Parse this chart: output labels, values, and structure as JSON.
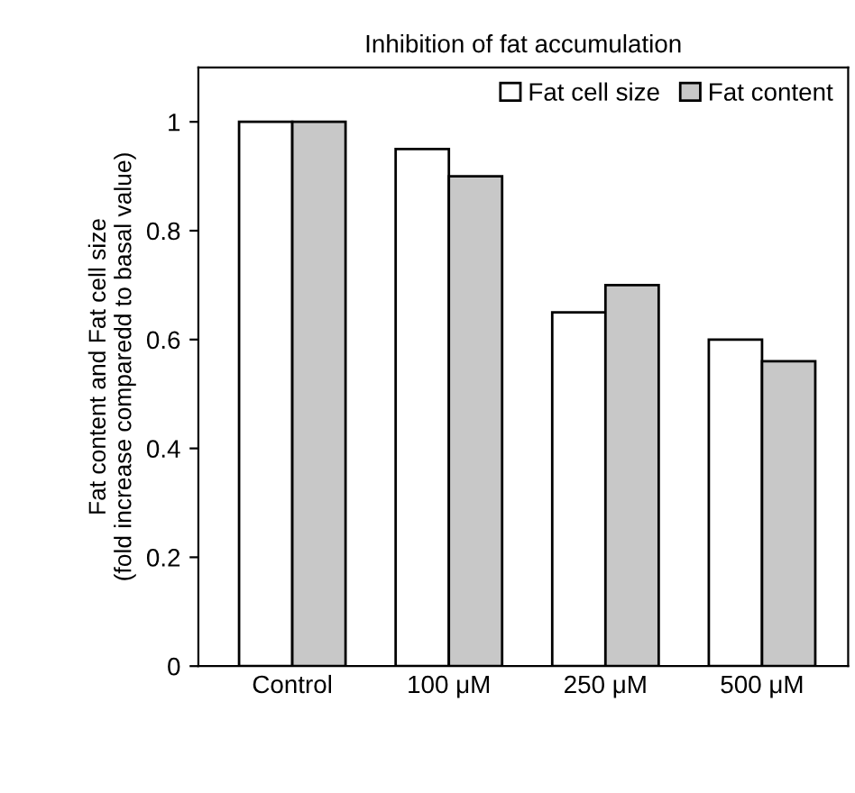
{
  "chart_data": {
    "type": "bar",
    "title": "Inhibition of fat accumulation",
    "ylabel": "Fat content and Fat cell size\n(fold increase comparedd to basal value)",
    "categories": [
      "Control",
      "100 μM",
      "250 μM",
      "500 μM"
    ],
    "series": [
      {
        "name": "Fat cell size",
        "color": "#ffffff",
        "values": [
          1,
          0.95,
          0.65,
          0.6
        ]
      },
      {
        "name": "Fat content",
        "color": "#c8c8c8",
        "values": [
          1,
          0.9,
          0.7,
          0.56
        ]
      }
    ],
    "ylim": [
      0,
      1.1
    ],
    "yticks": [
      0,
      0.2,
      0.4,
      0.6,
      0.8,
      1
    ],
    "grid": false,
    "legend": "top right"
  }
}
